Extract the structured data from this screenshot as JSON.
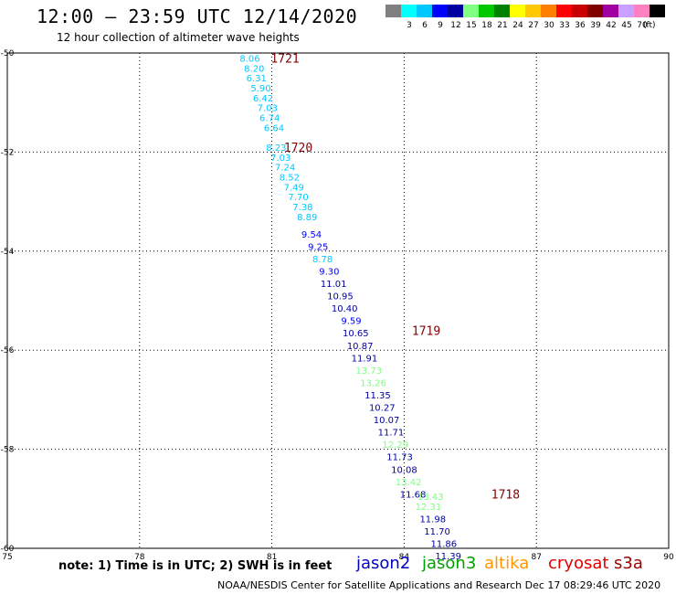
{
  "header": {
    "title": "12:00 — 23:59 UTC 12/14/2020",
    "subtitle": "12 hour collection of altimeter wave heights"
  },
  "color_scale": {
    "unit": "(ft)",
    "bins": [
      {
        "color": "#808080",
        "label": ""
      },
      {
        "color": "#00ffff",
        "label": "3"
      },
      {
        "color": "#00c8ff",
        "label": "6"
      },
      {
        "color": "#0000ff",
        "label": "9"
      },
      {
        "color": "#0000a0",
        "label": "12"
      },
      {
        "color": "#80ff80",
        "label": "15"
      },
      {
        "color": "#00c800",
        "label": "18"
      },
      {
        "color": "#008000",
        "label": "21"
      },
      {
        "color": "#ffff00",
        "label": "24"
      },
      {
        "color": "#ffc800",
        "label": "27"
      },
      {
        "color": "#ff8000",
        "label": "30"
      },
      {
        "color": "#ff0000",
        "label": "33"
      },
      {
        "color": "#c80000",
        "label": "36"
      },
      {
        "color": "#800000",
        "label": "39"
      },
      {
        "color": "#a000a0",
        "label": "42"
      },
      {
        "color": "#c8a0ff",
        "label": "45"
      },
      {
        "color": "#ff80c0",
        "label": "70"
      },
      {
        "color": "#000000",
        "label": ""
      }
    ]
  },
  "footer": {
    "note": "note:  1) Time is in UTC;  2) SWH is in feet",
    "satellites": [
      {
        "name": "jason2",
        "color": "#0000c8"
      },
      {
        "name": "jason3",
        "color": "#00a000"
      },
      {
        "name": "altika",
        "color": "#ff9600"
      },
      {
        "name": "cryosat",
        "color": "#e00000"
      },
      {
        "name": "s3a",
        "color": "#a00000"
      }
    ],
    "credit": "NOAA/NESDIS Center for Satellite Applications and Research     Dec 17 08:29:46 UTC 2020"
  },
  "chart_data": {
    "type": "scatter",
    "xlim": [
      75,
      90
    ],
    "ylim": [
      -60,
      -50
    ],
    "x_ticks": [
      "75",
      "78",
      "81",
      "84",
      "87",
      "90"
    ],
    "y_ticks": [
      "-50",
      "-52",
      "-54",
      "-56",
      "-58",
      "-60"
    ],
    "grid": true,
    "time_labels": [
      {
        "x": 81.3,
        "y": -50.1,
        "label": "1721"
      },
      {
        "x": 81.6,
        "y": -51.9,
        "label": "1720"
      },
      {
        "x": 84.5,
        "y": -55.6,
        "label": "1719"
      },
      {
        "x": 86.3,
        "y": -58.9,
        "label": "1718"
      }
    ],
    "points": [
      {
        "x": 80.5,
        "y": -50.1,
        "v": "8.06",
        "c": "#00c8ff"
      },
      {
        "x": 80.6,
        "y": -50.3,
        "v": "8.20",
        "c": "#00c8ff"
      },
      {
        "x": 80.65,
        "y": -50.5,
        "v": "6.31",
        "c": "#00c8ff"
      },
      {
        "x": 80.75,
        "y": -50.7,
        "v": "5.90",
        "c": "#00c8ff"
      },
      {
        "x": 80.8,
        "y": -50.9,
        "v": "6.42",
        "c": "#00c8ff"
      },
      {
        "x": 80.9,
        "y": -51.1,
        "v": "7.03",
        "c": "#00c8ff"
      },
      {
        "x": 80.95,
        "y": -51.3,
        "v": "6.74",
        "c": "#00c8ff"
      },
      {
        "x": 81.05,
        "y": -51.5,
        "v": "6.64",
        "c": "#00c8ff"
      },
      {
        "x": 81.1,
        "y": -51.9,
        "v": "8.23",
        "c": "#00c8ff"
      },
      {
        "x": 81.2,
        "y": -52.1,
        "v": "7.03",
        "c": "#00c8ff"
      },
      {
        "x": 81.3,
        "y": -52.3,
        "v": "7.24",
        "c": "#00c8ff"
      },
      {
        "x": 81.4,
        "y": -52.5,
        "v": "8.52",
        "c": "#00c8ff"
      },
      {
        "x": 81.5,
        "y": -52.7,
        "v": "7.49",
        "c": "#00c8ff"
      },
      {
        "x": 81.6,
        "y": -52.9,
        "v": "7.70",
        "c": "#00c8ff"
      },
      {
        "x": 81.7,
        "y": -53.1,
        "v": "7.38",
        "c": "#00c8ff"
      },
      {
        "x": 81.8,
        "y": -53.3,
        "v": "8.89",
        "c": "#00c8ff"
      },
      {
        "x": 81.9,
        "y": -53.65,
        "v": "9.54",
        "c": "#0000ff"
      },
      {
        "x": 82.05,
        "y": -53.9,
        "v": "9.25",
        "c": "#0000ff"
      },
      {
        "x": 82.15,
        "y": -54.15,
        "v": "8.78",
        "c": "#00c8ff"
      },
      {
        "x": 82.3,
        "y": -54.4,
        "v": "9.30",
        "c": "#0000ff"
      },
      {
        "x": 82.4,
        "y": -54.65,
        "v": "11.01",
        "c": "#0000a0"
      },
      {
        "x": 82.55,
        "y": -54.9,
        "v": "10.95",
        "c": "#0000a0"
      },
      {
        "x": 82.65,
        "y": -55.15,
        "v": "10.40",
        "c": "#0000a0"
      },
      {
        "x": 82.8,
        "y": -55.4,
        "v": "9.59",
        "c": "#0000ff"
      },
      {
        "x": 82.9,
        "y": -55.65,
        "v": "10.65",
        "c": "#0000a0"
      },
      {
        "x": 83.0,
        "y": -55.9,
        "v": "10.87",
        "c": "#0000a0"
      },
      {
        "x": 83.1,
        "y": -56.15,
        "v": "11.91",
        "c": "#0000a0"
      },
      {
        "x": 83.2,
        "y": -56.4,
        "v": "13.73",
        "c": "#80ff80"
      },
      {
        "x": 83.3,
        "y": -56.65,
        "v": "13.26",
        "c": "#80ff80"
      },
      {
        "x": 83.4,
        "y": -56.9,
        "v": "11.35",
        "c": "#0000a0"
      },
      {
        "x": 83.5,
        "y": -57.15,
        "v": "10.27",
        "c": "#0000a0"
      },
      {
        "x": 83.6,
        "y": -57.4,
        "v": "10.07",
        "c": "#0000a0"
      },
      {
        "x": 83.7,
        "y": -57.65,
        "v": "11.71",
        "c": "#0000a0"
      },
      {
        "x": 83.8,
        "y": -57.9,
        "v": "12.29",
        "c": "#80ff80"
      },
      {
        "x": 83.9,
        "y": -58.15,
        "v": "11.73",
        "c": "#0000a0"
      },
      {
        "x": 84.0,
        "y": -58.4,
        "v": "10.08",
        "c": "#0000a0"
      },
      {
        "x": 84.1,
        "y": -58.65,
        "v": "13.42",
        "c": "#80ff80"
      },
      {
        "x": 84.2,
        "y": -58.9,
        "v": "11.68",
        "c": "#0000a0"
      },
      {
        "x": 84.6,
        "y": -58.95,
        "v": "13.43",
        "c": "#80ff80"
      },
      {
        "x": 84.55,
        "y": -59.15,
        "v": "12.31",
        "c": "#80ff80"
      },
      {
        "x": 84.65,
        "y": -59.4,
        "v": "11.98",
        "c": "#0000a0"
      },
      {
        "x": 84.75,
        "y": -59.65,
        "v": "11.70",
        "c": "#0000a0"
      },
      {
        "x": 84.9,
        "y": -59.9,
        "v": "11.86",
        "c": "#0000a0"
      },
      {
        "x": 85.0,
        "y": -60.15,
        "v": "11.39",
        "c": "#0000a0"
      }
    ]
  }
}
